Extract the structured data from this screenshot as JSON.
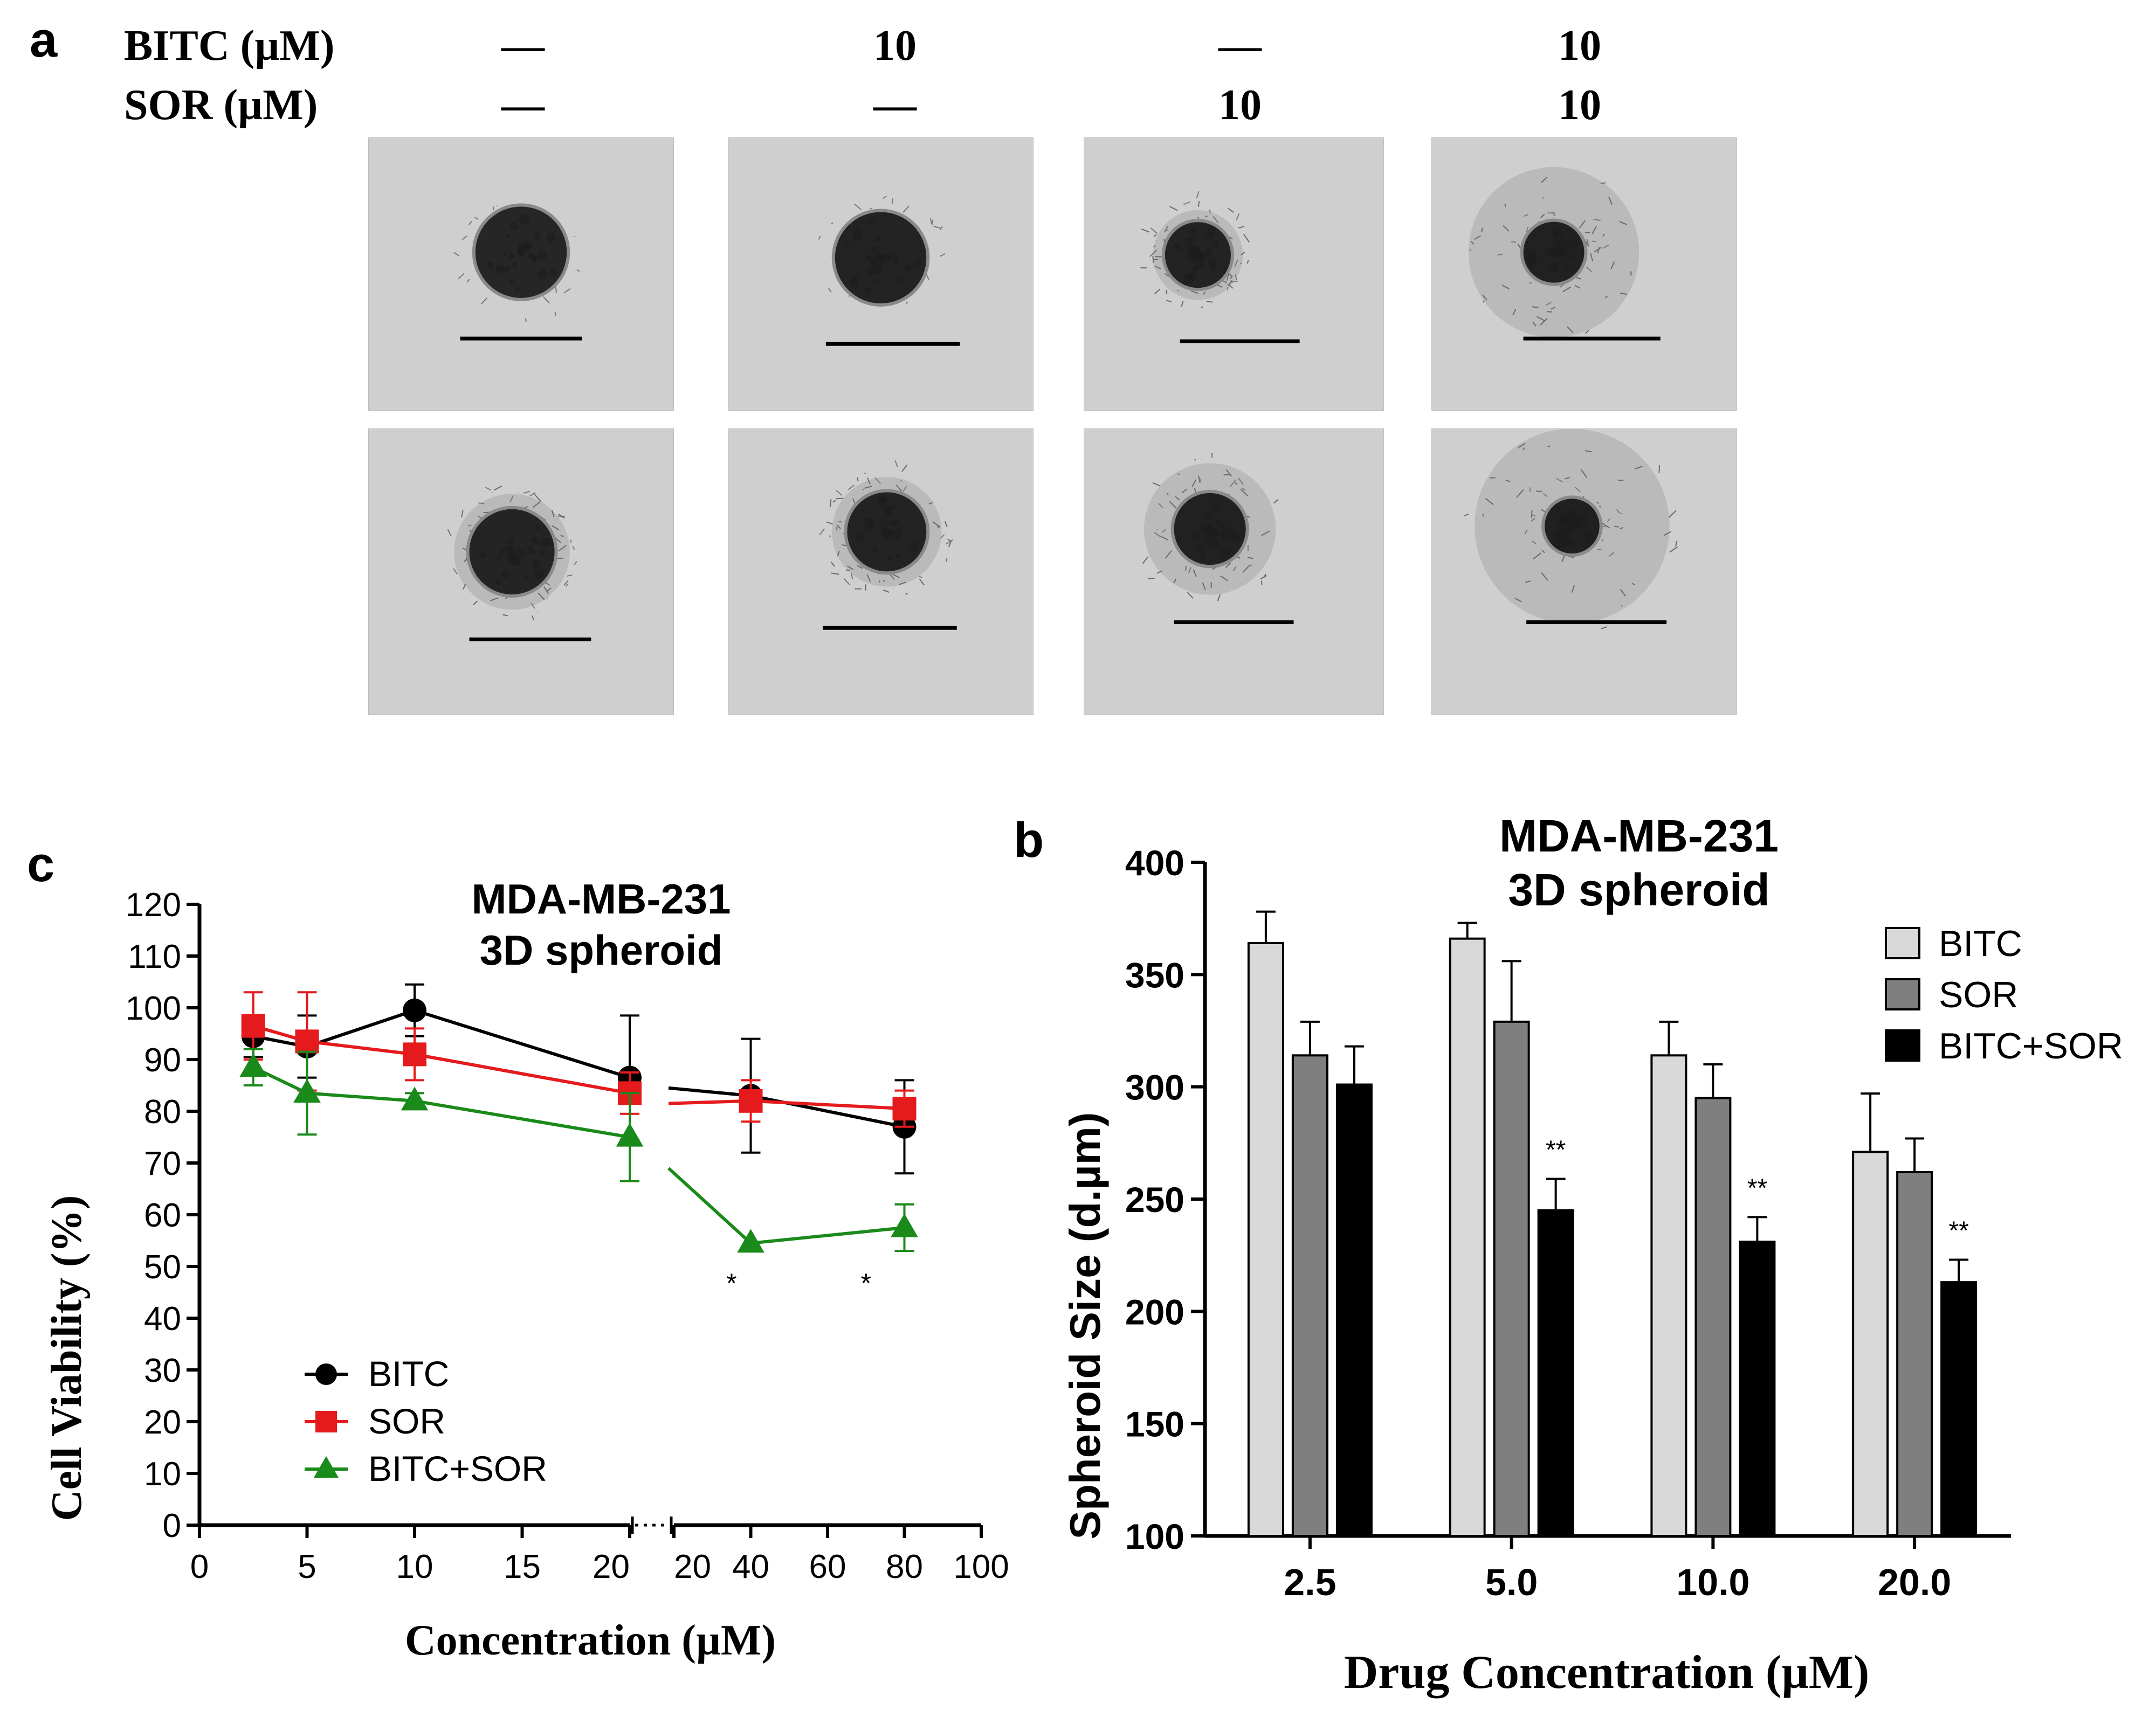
{
  "panel_a": {
    "letter": "a",
    "row_labels": [
      "BITC (µM)",
      "SOR  (µM)"
    ],
    "conditions": [
      {
        "bitc": "—",
        "sor": "—"
      },
      {
        "bitc": "10",
        "sor": "—"
      },
      {
        "bitc": "—",
        "sor": "10"
      },
      {
        "bitc": "10",
        "sor": "10"
      }
    ]
  },
  "colors": {
    "bitc_line": "#000000",
    "sor_line": "#e41a1c",
    "combo_line": "#1a8a1a",
    "bar_bitc": "#d9d9d9",
    "bar_sor": "#7f7f7f",
    "bar_combo": "#000000"
  },
  "chart_data": [
    {
      "id": "c",
      "letter": "c",
      "type": "line",
      "title": "MDA-MB-231\n3D spheroid",
      "title_lines": [
        "MDA-MB-231",
        "3D spheroid"
      ],
      "xlabel": "Concentration (µM)",
      "ylabel": "Cell Viability (%)",
      "ylim": [
        0,
        120
      ],
      "yticks": [
        0,
        10,
        20,
        30,
        40,
        50,
        60,
        70,
        80,
        90,
        100,
        110,
        120
      ],
      "x_segments": [
        {
          "range": [
            0,
            20
          ],
          "ticks": [
            0,
            5,
            10,
            15,
            20
          ],
          "tick_labels": [
            "0",
            "5",
            "10",
            "15",
            "20"
          ]
        },
        {
          "range": [
            20,
            100
          ],
          "ticks": [
            20,
            40,
            60,
            80,
            100
          ],
          "tick_labels": [
            "20",
            "40",
            "60",
            "80",
            "100"
          ]
        }
      ],
      "axis_break": "between 20 and 20",
      "legend_position": "bottom-left",
      "series": [
        {
          "name": "BITC",
          "marker": "circle",
          "color": "#000000",
          "x": [
            2.5,
            5,
            10,
            20,
            40,
            80
          ],
          "y": [
            94.5,
            92.5,
            99.5,
            86.5,
            83,
            77
          ],
          "err": [
            4,
            6,
            5,
            12,
            11,
            9
          ]
        },
        {
          "name": "SOR",
          "marker": "square",
          "color": "#e41a1c",
          "x": [
            2.5,
            5,
            10,
            20,
            40,
            80
          ],
          "y": [
            96.5,
            93.5,
            91,
            83.5,
            82,
            80.5
          ],
          "err": [
            6.5,
            9.5,
            5,
            4,
            4,
            3.5
          ]
        },
        {
          "name": "BITC+SOR",
          "marker": "triangle",
          "color": "#1a8a1a",
          "x": [
            2.5,
            5,
            10,
            20,
            40,
            80
          ],
          "y": [
            88.5,
            83.5,
            82,
            75,
            54.5,
            57.5
          ],
          "err": [
            3.5,
            8,
            1.5,
            8.5,
            0,
            4.5
          ]
        }
      ],
      "annotations": [
        {
          "text": "*",
          "x": 35,
          "y": 45
        },
        {
          "text": "*",
          "x": 70,
          "y": 45
        }
      ]
    },
    {
      "id": "b",
      "letter": "b",
      "type": "bar",
      "title": "MDA-MB-231\n3D spheroid",
      "title_lines": [
        "MDA-MB-231",
        "3D spheroid"
      ],
      "xlabel": "Drug Concentration (µM)",
      "ylabel": "Spheroid Size (d.µm)",
      "ylim": [
        100,
        400
      ],
      "yticks": [
        100,
        150,
        200,
        250,
        300,
        350,
        400
      ],
      "categories": [
        "2.5",
        "5.0",
        "10.0",
        "20.0"
      ],
      "legend_position": "top-right",
      "series": [
        {
          "name": "BITC",
          "color": "#d9d9d9",
          "values": [
            364,
            366,
            314,
            271
          ],
          "err": [
            14,
            7,
            15,
            26
          ]
        },
        {
          "name": "SOR",
          "color": "#7f7f7f",
          "values": [
            314,
            329,
            295,
            262
          ],
          "err": [
            15,
            27,
            15,
            15
          ]
        },
        {
          "name": "BITC+SOR",
          "color": "#000000",
          "values": [
            301,
            245,
            231,
            213
          ],
          "err": [
            17,
            14,
            11,
            10
          ]
        }
      ],
      "annotations": [
        {
          "text": "**",
          "category": "5.0"
        },
        {
          "text": "**",
          "category": "10.0"
        },
        {
          "text": "**",
          "category": "20.0"
        }
      ]
    }
  ]
}
